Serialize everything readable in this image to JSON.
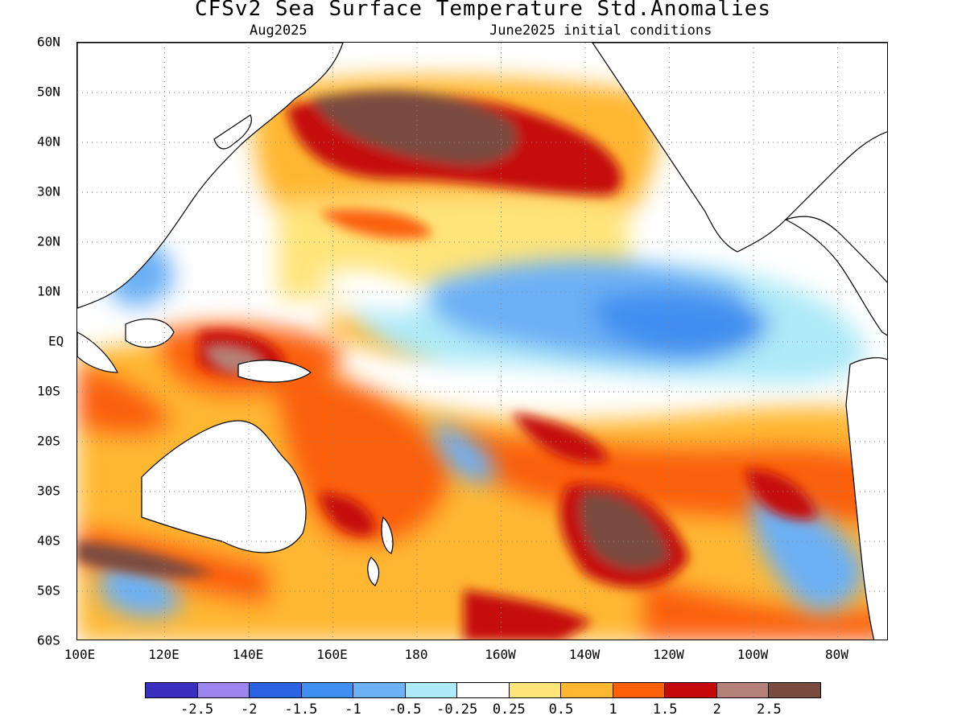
{
  "title": "CFSv2 Sea Surface Temperature Std.Anomalies",
  "subtitle_left": "Aug2025",
  "subtitle_right": "June2025 initial conditions",
  "lat_labels": [
    "60N",
    "50N",
    "40N",
    "30N",
    "20N",
    "10N",
    "EQ",
    "10S",
    "20S",
    "30S",
    "40S",
    "50S",
    "60S"
  ],
  "lon_labels": [
    "100E",
    "120E",
    "140E",
    "160E",
    "180",
    "160W",
    "140W",
    "120W",
    "100W",
    "80W"
  ],
  "colorbar": {
    "colors": [
      "#3b2fbf",
      "#9b86f0",
      "#2a63e0",
      "#3f8ff0",
      "#6cb0f5",
      "#aeeaf8",
      "#ffffff",
      "#ffe47a",
      "#ffb732",
      "#fb6008",
      "#c50808",
      "#b48278",
      "#7a4c40"
    ],
    "labels": [
      "-2.5",
      "-2",
      "-1.5",
      "-1",
      "-0.5",
      "-0.25",
      "0.25",
      "0.5",
      "1",
      "1.5",
      "2",
      "2.5"
    ]
  },
  "map": {
    "projection": "equirectangular",
    "lon_range": [
      "100E",
      "70W"
    ],
    "lat_range": [
      "60S",
      "60N"
    ],
    "grid": "dotted",
    "variable": "SST standardized anomaly"
  }
}
